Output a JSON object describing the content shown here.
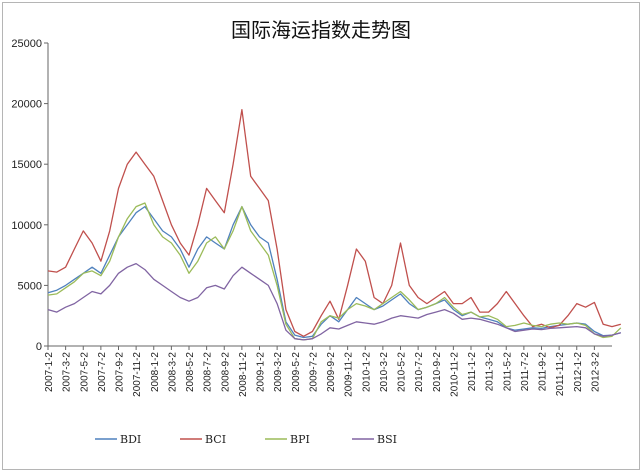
{
  "chart_data": {
    "type": "line",
    "title": "国际海运指数走势图",
    "xlabel": "",
    "ylabel": "",
    "ylim": [
      0,
      25000
    ],
    "yticks": [
      0,
      5000,
      10000,
      15000,
      20000,
      25000
    ],
    "grid": false,
    "legend_position": "bottom",
    "x_tick_labels": [
      "2007-1-2",
      "2007-3-2",
      "2007-5-2",
      "2007-7-2",
      "2007-9-2",
      "2007-11-2",
      "2008-1-2",
      "2008-3-2",
      "2008-5-2",
      "2008-7-2",
      "2008-9-2",
      "2008-11-2",
      "2009-1-2",
      "2009-3-2",
      "2009-5-2",
      "2009-7-2",
      "2009-9-2",
      "2009-11-2",
      "2010-1-2",
      "2010-3-2",
      "2010-5-2",
      "2010-7-2",
      "2010-9-2",
      "2010-11-2",
      "2011-1-2",
      "2011-3-2",
      "2011-5-2",
      "2011-7-2",
      "2011-9-2",
      "2011-11-2",
      "2012-1-2",
      "2012-3-2"
    ],
    "x": [
      0,
      0.5,
      1,
      1.5,
      2,
      2.5,
      3,
      3.5,
      4,
      4.5,
      5,
      5.5,
      6,
      6.5,
      7,
      7.5,
      8,
      8.5,
      9,
      9.5,
      10,
      10.5,
      11,
      11.5,
      12,
      12.5,
      13,
      13.5,
      14,
      14.5,
      15,
      15.5,
      16,
      16.5,
      17,
      17.5,
      18,
      18.5,
      19,
      19.5,
      20,
      20.5,
      21,
      21.5,
      22,
      22.5,
      23,
      23.5,
      24,
      24.5,
      25,
      25.5,
      26,
      26.5,
      27,
      27.5,
      28,
      28.5,
      29,
      29.5,
      30,
      30.5,
      31,
      31.5,
      32,
      32.5
    ],
    "series": [
      {
        "name": "BDI",
        "color": "#4f81bd",
        "values": [
          4400,
          4600,
          5000,
          5500,
          6000,
          6500,
          6000,
          7500,
          9000,
          10000,
          11000,
          11500,
          10500,
          9500,
          9000,
          8000,
          6500,
          8000,
          9000,
          8500,
          8000,
          10000,
          11500,
          10000,
          9000,
          8500,
          5500,
          2000,
          900,
          700,
          800,
          1800,
          2500,
          2000,
          3000,
          4000,
          3500,
          3000,
          3300,
          3800,
          4300,
          3500,
          3000,
          3200,
          3500,
          3800,
          3000,
          2500,
          2800,
          2400,
          2200,
          2000,
          1500,
          1300,
          1400,
          1500,
          1450,
          1600,
          1700,
          1800,
          1900,
          1800,
          1200,
          850,
          900,
          1100
        ]
      },
      {
        "name": "BCI",
        "color": "#c0504d",
        "values": [
          6200,
          6100,
          6500,
          8000,
          9500,
          8500,
          7000,
          9500,
          13000,
          15000,
          16000,
          15000,
          14000,
          12000,
          10000,
          8500,
          7500,
          10000,
          13000,
          12000,
          11000,
          15000,
          19500,
          14000,
          13000,
          12000,
          8000,
          3000,
          1200,
          800,
          1200,
          2500,
          3700,
          2200,
          5000,
          8000,
          7000,
          4000,
          3500,
          5000,
          8500,
          5000,
          4000,
          3500,
          4000,
          4500,
          3500,
          3500,
          4000,
          2800,
          2800,
          3500,
          4500,
          3500,
          2500,
          1600,
          1800,
          1500,
          1700,
          2500,
          3500,
          3200,
          3600,
          1800,
          1600,
          1800
        ]
      },
      {
        "name": "BPI",
        "color": "#9bbb59",
        "values": [
          4200,
          4300,
          4800,
          5300,
          6000,
          6200,
          5800,
          7000,
          9000,
          10500,
          11500,
          11800,
          10000,
          9000,
          8500,
          7500,
          6000,
          7000,
          8500,
          9000,
          8000,
          9500,
          11500,
          9500,
          8500,
          7500,
          5000,
          1800,
          600,
          500,
          600,
          2000,
          2500,
          2300,
          3000,
          3500,
          3300,
          3000,
          3500,
          4000,
          4500,
          3800,
          3000,
          3200,
          3500,
          4000,
          3200,
          2600,
          2800,
          2400,
          2500,
          2200,
          1600,
          1700,
          1900,
          1700,
          1600,
          1800,
          1900,
          1800,
          1900,
          1700,
          1000,
          700,
          800,
          1500
        ]
      },
      {
        "name": "BSI",
        "color": "#8064a2",
        "values": [
          3000,
          2800,
          3200,
          3500,
          4000,
          4500,
          4300,
          5000,
          6000,
          6500,
          6800,
          6300,
          5500,
          5000,
          4500,
          4000,
          3700,
          4000,
          4800,
          5000,
          4700,
          5800,
          6500,
          6000,
          5500,
          5000,
          3500,
          1300,
          600,
          500,
          600,
          1000,
          1500,
          1400,
          1700,
          2000,
          1900,
          1800,
          2000,
          2300,
          2500,
          2400,
          2300,
          2600,
          2800,
          3000,
          2700,
          2200,
          2300,
          2200,
          2000,
          1800,
          1500,
          1200,
          1300,
          1400,
          1350,
          1450,
          1500,
          1550,
          1600,
          1500,
          1000,
          800,
          900,
          1100
        ]
      }
    ]
  }
}
